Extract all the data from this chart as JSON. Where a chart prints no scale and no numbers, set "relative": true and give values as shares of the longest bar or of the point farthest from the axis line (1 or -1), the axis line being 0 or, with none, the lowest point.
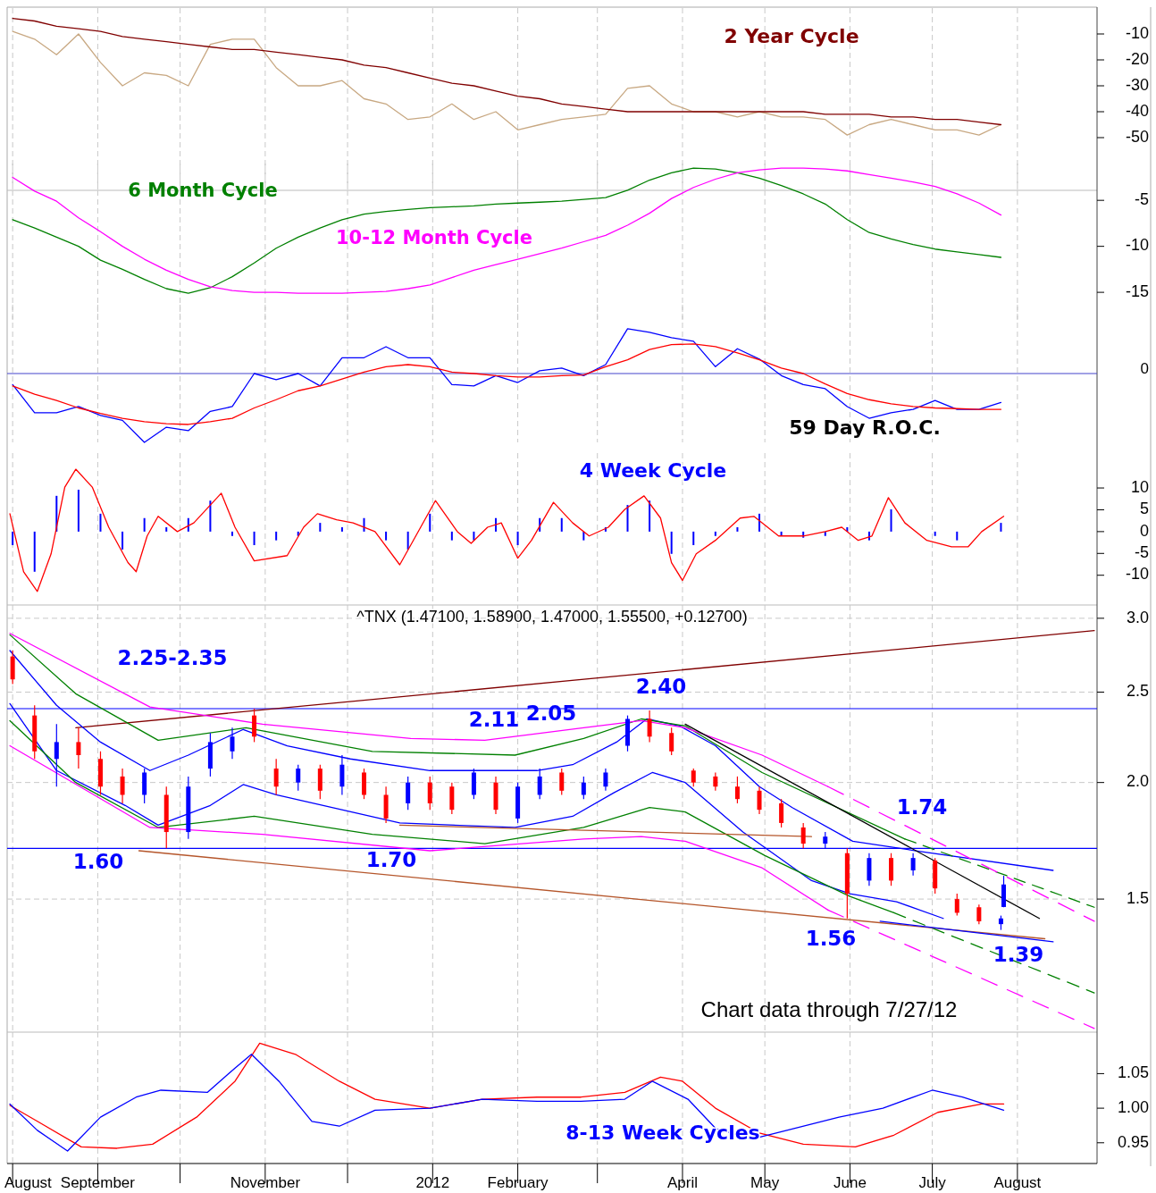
{
  "chart_data": [
    {
      "type": "line",
      "title": "2 Year Cycle",
      "xlim": [
        "2011-07-30",
        "2012-08-30"
      ],
      "ylim": [
        -70,
        0
      ],
      "yticks": [
        -10,
        -20,
        -30,
        -40,
        -50
      ],
      "tick_labels": "y",
      "grid": "x",
      "xticks": [
        {
          "value": "2011-08-01",
          "label": null
        },
        {
          "value": "2011-09-01",
          "label": null
        },
        {
          "value": "2011-10-01",
          "label": null
        },
        {
          "value": "2011-11-01",
          "label": null
        },
        {
          "value": "2011-12-01",
          "label": null
        },
        {
          "value": "2012-01-01",
          "label": null
        },
        {
          "value": "2012-02-01",
          "label": null
        },
        {
          "value": "2012-03-01",
          "label": null
        },
        {
          "value": "2012-04-01",
          "label": null
        },
        {
          "value": "2012-05-01",
          "label": null
        },
        {
          "value": "2012-06-01",
          "label": null
        },
        {
          "value": "2012-07-01",
          "label": null
        },
        {
          "value": "2012-08-01",
          "label": null
        }
      ],
      "x": [
        "2011-08-01",
        "2011-08-09",
        "2011-08-17",
        "2011-08-25",
        "2011-09-02",
        "2011-09-10",
        "2011-09-18",
        "2011-09-26",
        "2011-10-04",
        "2011-10-12",
        "2011-10-20",
        "2011-10-28",
        "2011-11-05",
        "2011-11-13",
        "2011-11-21",
        "2011-11-29",
        "2011-12-07",
        "2011-12-15",
        "2011-12-23",
        "2011-12-31",
        "2012-01-08",
        "2012-01-16",
        "2012-01-24",
        "2012-02-01",
        "2012-02-09",
        "2012-02-17",
        "2012-02-25",
        "2012-03-04",
        "2012-03-12",
        "2012-03-20",
        "2012-03-28",
        "2012-04-05",
        "2012-04-13",
        "2012-04-21",
        "2012-04-29",
        "2012-05-07",
        "2012-05-15",
        "2012-05-23",
        "2012-05-31",
        "2012-06-08",
        "2012-06-16",
        "2012-06-24",
        "2012-07-02",
        "2012-07-10",
        "2012-07-18",
        "2012-07-26"
      ],
      "series": [
        {
          "color": "#c8a882",
          "values": [
            -9,
            -12,
            -18,
            -10,
            -21,
            -30,
            -25,
            -26,
            -30,
            -14,
            -12,
            -12,
            -23,
            -30,
            -30,
            -28,
            -35,
            -37,
            -43,
            -42,
            -37,
            -43,
            -40,
            -47,
            -45,
            -43,
            -42,
            -41,
            -31,
            -30,
            -37,
            -40,
            -40,
            -42,
            -40,
            -42,
            -42,
            -43,
            -49,
            -45,
            -43,
            -45,
            -47,
            -47,
            -49,
            -45
          ]
        },
        {
          "color": "#800000",
          "values": [
            -4,
            -5,
            -7,
            -8,
            -9,
            -11,
            -12,
            -13,
            -14,
            -15,
            -16,
            -16,
            -17,
            -18,
            -19,
            -20,
            -22,
            -23,
            -25,
            -27,
            -29,
            -30,
            -32,
            -34,
            -35,
            -37,
            -38,
            -39,
            -40,
            -40,
            -40,
            -40,
            -40,
            -40,
            -40,
            -40,
            -40,
            -41,
            -41,
            -41,
            -42,
            -42,
            -43,
            -43,
            -44,
            -45
          ]
        }
      ]
    },
    {
      "type": "line",
      "xlim": [
        "2011-07-30",
        "2012-08-30"
      ],
      "ylim": [
        -18,
        -1
      ],
      "yticks": [
        -5,
        -10,
        -15
      ],
      "tick_labels": "y",
      "grid": "x",
      "xticks": [
        {
          "value": "2011-08-01",
          "label": null
        },
        {
          "value": "2011-09-01",
          "label": null
        },
        {
          "value": "2011-10-01",
          "label": null
        },
        {
          "value": "2011-11-01",
          "label": null
        },
        {
          "value": "2011-12-01",
          "label": null
        },
        {
          "value": "2012-01-01",
          "label": null
        },
        {
          "value": "2012-02-01",
          "label": null
        },
        {
          "value": "2012-03-01",
          "label": null
        },
        {
          "value": "2012-04-01",
          "label": null
        },
        {
          "value": "2012-05-01",
          "label": null
        },
        {
          "value": "2012-06-01",
          "label": null
        },
        {
          "value": "2012-07-01",
          "label": null
        },
        {
          "value": "2012-08-01",
          "label": null
        }
      ],
      "x": [
        "2011-08-01",
        "2011-08-09",
        "2011-08-17",
        "2011-08-25",
        "2011-09-02",
        "2011-09-10",
        "2011-09-18",
        "2011-09-26",
        "2011-10-04",
        "2011-10-12",
        "2011-10-20",
        "2011-10-28",
        "2011-11-05",
        "2011-11-13",
        "2011-11-21",
        "2011-11-29",
        "2011-12-07",
        "2011-12-15",
        "2011-12-23",
        "2011-12-31",
        "2012-01-08",
        "2012-01-16",
        "2012-01-24",
        "2012-02-01",
        "2012-02-09",
        "2012-02-17",
        "2012-02-25",
        "2012-03-04",
        "2012-03-12",
        "2012-03-20",
        "2012-03-28",
        "2012-04-05",
        "2012-04-13",
        "2012-04-21",
        "2012-04-29",
        "2012-05-07",
        "2012-05-15",
        "2012-05-23",
        "2012-05-31",
        "2012-06-08",
        "2012-06-16",
        "2012-06-24",
        "2012-07-02",
        "2012-07-10",
        "2012-07-18",
        "2012-07-26"
      ],
      "series": [
        {
          "name": "6 Month Cycle",
          "color": "#008000",
          "values": [
            -7.1,
            -8.0,
            -9.0,
            -10.0,
            -11.5,
            -12.5,
            -13.6,
            -14.6,
            -15.1,
            -14.5,
            -13.3,
            -11.8,
            -10.2,
            -9.0,
            -8.0,
            -7.1,
            -6.5,
            -6.2,
            -6.0,
            -5.8,
            -5.7,
            -5.6,
            -5.4,
            -5.3,
            -5.2,
            -5.1,
            -4.9,
            -4.7,
            -3.9,
            -2.8,
            -2.0,
            -1.5,
            -1.6,
            -2.0,
            -2.6,
            -3.4,
            -4.3,
            -5.4,
            -7.1,
            -8.5,
            -9.2,
            -9.8,
            -10.3,
            -10.6,
            -10.9,
            -11.2
          ]
        },
        {
          "name": "10-12 Month Cycle",
          "color": "#ff00ff",
          "values": [
            -2.5,
            -4.0,
            -5.1,
            -6.9,
            -8.4,
            -10.0,
            -11.4,
            -12.6,
            -13.6,
            -14.4,
            -14.8,
            -15.0,
            -15.0,
            -15.1,
            -15.1,
            -15.1,
            -15.0,
            -14.9,
            -14.6,
            -14.2,
            -13.4,
            -12.6,
            -12.0,
            -11.4,
            -10.8,
            -10.2,
            -9.5,
            -8.8,
            -7.7,
            -6.4,
            -4.8,
            -3.6,
            -2.7,
            -2.0,
            -1.7,
            -1.5,
            -1.5,
            -1.6,
            -1.8,
            -2.2,
            -2.6,
            -3.0,
            -3.5,
            -4.3,
            -5.3,
            -6.6
          ]
        }
      ]
    },
    {
      "type": "line",
      "title": "59 Day R.O.C.",
      "relative": true,
      "xlim": [
        "2011-07-30",
        "2012-08-30"
      ],
      "tick_labels": false,
      "grid": "x",
      "xticks": [
        {
          "value": "2011-08-01",
          "label": null
        },
        {
          "value": "2011-09-01",
          "label": null
        },
        {
          "value": "2011-10-01",
          "label": null
        },
        {
          "value": "2011-11-01",
          "label": null
        },
        {
          "value": "2011-12-01",
          "label": null
        },
        {
          "value": "2012-01-01",
          "label": null
        },
        {
          "value": "2012-02-01",
          "label": null
        },
        {
          "value": "2012-03-01",
          "label": null
        },
        {
          "value": "2012-04-01",
          "label": null
        },
        {
          "value": "2012-05-01",
          "label": null
        },
        {
          "value": "2012-06-01",
          "label": null
        },
        {
          "value": "2012-07-01",
          "label": null
        },
        {
          "value": "2012-08-01",
          "label": null
        }
      ],
      "ref_lines": [
        {
          "axis": "y",
          "value": 0,
          "label": "0",
          "color": "#4444cc"
        }
      ],
      "x": [
        "2011-08-01",
        "2011-08-09",
        "2011-08-17",
        "2011-08-25",
        "2011-09-02",
        "2011-09-10",
        "2011-09-18",
        "2011-09-26",
        "2011-10-04",
        "2011-10-12",
        "2011-10-20",
        "2011-10-28",
        "2011-11-05",
        "2011-11-13",
        "2011-11-21",
        "2011-11-29",
        "2011-12-07",
        "2011-12-15",
        "2011-12-23",
        "2011-12-31",
        "2012-01-08",
        "2012-01-16",
        "2012-01-24",
        "2012-02-01",
        "2012-02-09",
        "2012-02-17",
        "2012-02-25",
        "2012-03-04",
        "2012-03-12",
        "2012-03-20",
        "2012-03-28",
        "2012-04-05",
        "2012-04-13",
        "2012-04-21",
        "2012-04-29",
        "2012-05-07",
        "2012-05-15",
        "2012-05-23",
        "2012-05-31",
        "2012-06-08",
        "2012-06-16",
        "2012-06-24",
        "2012-07-02",
        "2012-07-10",
        "2012-07-18",
        "2012-07-26"
      ],
      "series": [
        {
          "color": "#0000ff",
          "values": [
            -0.16,
            -0.57,
            -0.57,
            -0.48,
            -0.61,
            -0.68,
            -1,
            -0.78,
            -0.83,
            -0.55,
            -0.48,
            0,
            -0.09,
            0,
            -0.18,
            0.23,
            0.23,
            0.39,
            0.23,
            0.23,
            -0.16,
            -0.18,
            -0.03,
            -0.13,
            0.04,
            0.08,
            -0.03,
            0.13,
            0.65,
            0.6,
            0.52,
            0.47,
            0.1,
            0.36,
            0.21,
            -0.03,
            -0.16,
            -0.22,
            -0.48,
            -0.65,
            -0.57,
            -0.52,
            -0.39,
            -0.52,
            -0.52,
            -0.42
          ]
        },
        {
          "color": "#ff0000",
          "values": [
            -0.18,
            -0.3,
            -0.39,
            -0.5,
            -0.58,
            -0.65,
            -0.7,
            -0.73,
            -0.74,
            -0.7,
            -0.65,
            -0.5,
            -0.38,
            -0.25,
            -0.18,
            -0.08,
            0.02,
            0.1,
            0.13,
            0.1,
            0.02,
            0,
            -0.03,
            -0.05,
            -0.05,
            -0.03,
            -0.02,
            0.1,
            0.2,
            0.35,
            0.42,
            0.43,
            0.39,
            0.3,
            0.2,
            0.08,
            0,
            -0.15,
            -0.29,
            -0.38,
            -0.44,
            -0.48,
            -0.5,
            -0.51,
            -0.52,
            -0.52
          ]
        }
      ]
    },
    {
      "type": "line",
      "title": "4 Week Cycle",
      "xlim": [
        "2011-07-30",
        "2012-08-30"
      ],
      "ylim": [
        -16,
        18
      ],
      "yticks": [
        10,
        5,
        0,
        -5,
        -10
      ],
      "tick_labels": "y",
      "grid": "x",
      "xticks": [
        {
          "value": "2011-08-01",
          "label": null
        },
        {
          "value": "2011-09-01",
          "label": null
        },
        {
          "value": "2011-10-01",
          "label": null
        },
        {
          "value": "2011-11-01",
          "label": null
        },
        {
          "value": "2011-12-01",
          "label": null
        },
        {
          "value": "2012-01-01",
          "label": null
        },
        {
          "value": "2012-02-01",
          "label": null
        },
        {
          "value": "2012-03-01",
          "label": null
        },
        {
          "value": "2012-04-01",
          "label": null
        },
        {
          "value": "2012-05-01",
          "label": null
        },
        {
          "value": "2012-06-01",
          "label": null
        },
        {
          "value": "2012-07-01",
          "label": null
        },
        {
          "value": "2012-08-01",
          "label": null
        }
      ],
      "x": [
        "2011-08-01",
        "2011-08-09",
        "2011-08-17",
        "2011-08-25",
        "2011-09-02",
        "2011-09-10",
        "2011-09-18",
        "2011-09-26",
        "2011-10-04",
        "2011-10-12",
        "2011-10-20",
        "2011-10-28",
        "2011-11-05",
        "2011-11-13",
        "2011-11-21",
        "2011-11-29",
        "2011-12-07",
        "2011-12-15",
        "2011-12-23",
        "2011-12-31",
        "2012-01-08",
        "2012-01-16",
        "2012-01-24",
        "2012-02-01",
        "2012-02-09",
        "2012-02-17",
        "2012-02-25",
        "2012-03-04",
        "2012-03-12",
        "2012-03-20",
        "2012-03-28",
        "2012-04-05",
        "2012-04-13",
        "2012-04-21",
        "2012-04-29",
        "2012-05-07",
        "2012-05-15",
        "2012-05-23",
        "2012-05-31",
        "2012-06-08",
        "2012-06-16",
        "2012-06-24",
        "2012-07-02",
        "2012-07-10",
        "2012-07-18",
        "2012-07-26"
      ],
      "series": [
        {
          "type": "bar",
          "color": "#0000ff",
          "values": [
            -3.1,
            -9.2,
            8.2,
            9.6,
            4.1,
            -4.1,
            3.1,
            1.0,
            3.1,
            7.1,
            -1.0,
            -3.1,
            -2.0,
            -1.0,
            2.0,
            1.0,
            3.1,
            -2.0,
            -4.1,
            4.1,
            -2.0,
            -2.0,
            3.1,
            -3.1,
            3.1,
            3.1,
            -2.0,
            1.0,
            6.1,
            7.1,
            -5.1,
            -3.1,
            -1.0,
            1.0,
            4.1,
            -1.0,
            -1.4,
            -1.0,
            1.0,
            -2.0,
            5.1,
            0,
            -1.0,
            -2.0,
            0,
            2.0
          ]
        },
        {
          "type": "line",
          "color": "#ff0000",
          "x": [
            "2011-07-31",
            "2011-08-05",
            "2011-08-10",
            "2011-08-15",
            "2011-08-20",
            "2011-08-24",
            "2011-08-30",
            "2011-09-05",
            "2011-09-12",
            "2011-09-15",
            "2011-09-19",
            "2011-09-23",
            "2011-09-30",
            "2011-10-06",
            "2011-10-16",
            "2011-10-21",
            "2011-10-28",
            "2011-11-09",
            "2011-11-15",
            "2011-11-20",
            "2011-11-27",
            "2011-12-03",
            "2011-12-11",
            "2011-12-20",
            "2011-12-24",
            "2012-01-02",
            "2012-01-10",
            "2012-01-15",
            "2012-01-21",
            "2012-01-26",
            "2012-02-01",
            "2012-02-06",
            "2012-02-14",
            "2012-02-21",
            "2012-02-27",
            "2012-03-05",
            "2012-03-11",
            "2012-03-18",
            "2012-03-24",
            "2012-03-28",
            "2012-04-01",
            "2012-04-06",
            "2012-04-13",
            "2012-04-22",
            "2012-04-27",
            "2012-05-06",
            "2012-05-15",
            "2012-05-23",
            "2012-05-29",
            "2012-06-04",
            "2012-06-09",
            "2012-06-15",
            "2012-06-21",
            "2012-06-29",
            "2012-07-08",
            "2012-07-14",
            "2012-07-19",
            "2012-07-27"
          ],
          "values": [
            4.1,
            -9.2,
            -13.7,
            -5.1,
            10.2,
            14.3,
            10.2,
            1.0,
            -7.1,
            -9.2,
            -1.0,
            3.5,
            0,
            2.0,
            8.8,
            1.0,
            -6.7,
            -5.5,
            1.0,
            4.1,
            2.7,
            2.0,
            0,
            -7.6,
            -3.1,
            7.1,
            0,
            -2.7,
            1.0,
            2.0,
            -6.1,
            -2.0,
            6.7,
            2.0,
            -1.0,
            1.0,
            5.1,
            8.2,
            3.1,
            -7.1,
            -11.2,
            -5.1,
            -2.0,
            3.1,
            3.5,
            -1.0,
            -1.0,
            0,
            1.0,
            -2.0,
            -1.0,
            7.8,
            2.0,
            -2.0,
            -3.5,
            -3.5,
            0,
            3.5
          ]
        }
      ]
    },
    {
      "type": "candlestick",
      "title": "^TNX (1.47100, 1.58900, 1.47000, 1.55500, +0.12700)",
      "log": true,
      "xlim": [
        "2011-07-30",
        "2012-08-30"
      ],
      "ylim": [
        1.08,
        3.1
      ],
      "yticks": [
        {
          "value": 3,
          "label": "3.0"
        },
        2.5,
        {
          "value": 2,
          "label": "2.0"
        },
        1.5
      ],
      "tick_labels": "y",
      "grid": true,
      "xticks": [
        {
          "value": "2011-08-01",
          "label": null
        },
        {
          "value": "2011-09-01",
          "label": null
        },
        {
          "value": "2011-10-01",
          "label": null
        },
        {
          "value": "2011-11-01",
          "label": null
        },
        {
          "value": "2011-12-01",
          "label": null
        },
        {
          "value": "2012-01-01",
          "label": null
        },
        {
          "value": "2012-02-01",
          "label": null
        },
        {
          "value": "2012-03-01",
          "label": null
        },
        {
          "value": "2012-04-01",
          "label": null
        },
        {
          "value": "2012-05-01",
          "label": null
        },
        {
          "value": "2012-06-01",
          "label": null
        },
        {
          "value": "2012-07-01",
          "label": null
        },
        {
          "value": "2012-08-01",
          "label": null
        }
      ],
      "x": [
        "2011-08-01",
        "2011-08-09",
        "2011-08-17",
        "2011-08-25",
        "2011-09-02",
        "2011-09-10",
        "2011-09-18",
        "2011-09-26",
        "2011-10-04",
        "2011-10-12",
        "2011-10-20",
        "2011-10-28",
        "2011-11-05",
        "2011-11-13",
        "2011-11-21",
        "2011-11-29",
        "2011-12-07",
        "2011-12-15",
        "2011-12-23",
        "2011-12-31",
        "2012-01-08",
        "2012-01-16",
        "2012-01-24",
        "2012-02-01",
        "2012-02-09",
        "2012-02-17",
        "2012-02-25",
        "2012-03-04",
        "2012-03-12",
        "2012-03-20",
        "2012-03-28",
        "2012-04-05",
        "2012-04-13",
        "2012-04-21",
        "2012-04-29",
        "2012-05-07",
        "2012-05-15",
        "2012-05-23",
        "2012-05-31",
        "2012-06-08",
        "2012-06-16",
        "2012-06-24",
        "2012-07-02",
        "2012-07-10",
        "2012-07-18",
        "2012-07-26",
        "2012-07-27"
      ],
      "ohlc": [
        [
          2.73,
          2.77,
          2.55,
          2.58
        ],
        [
          2.36,
          2.42,
          2.12,
          2.16
        ],
        [
          2.12,
          2.31,
          1.98,
          2.21
        ],
        [
          2.21,
          2.29,
          2.07,
          2.14
        ],
        [
          2.12,
          2.16,
          1.94,
          1.98
        ],
        [
          2.03,
          2.07,
          1.9,
          1.94
        ],
        [
          1.94,
          2.07,
          1.9,
          2.05
        ],
        [
          1.94,
          1.98,
          1.7,
          1.77
        ],
        [
          1.77,
          2.03,
          1.74,
          1.98
        ],
        [
          2.07,
          2.26,
          2.03,
          2.21
        ],
        [
          2.16,
          2.29,
          2.12,
          2.24
        ],
        [
          2.36,
          2.4,
          2.21,
          2.24
        ],
        [
          2.07,
          2.12,
          1.94,
          1.98
        ],
        [
          2.0,
          2.09,
          1.96,
          2.07
        ],
        [
          2.07,
          2.09,
          1.92,
          1.96
        ],
        [
          1.98,
          2.14,
          1.94,
          2.09
        ],
        [
          2.05,
          2.07,
          1.92,
          1.94
        ],
        [
          1.94,
          1.98,
          1.81,
          1.83
        ],
        [
          1.9,
          2.03,
          1.87,
          2.0
        ],
        [
          2.0,
          2.03,
          1.87,
          1.9
        ],
        [
          1.98,
          2.0,
          1.85,
          1.87
        ],
        [
          1.94,
          2.07,
          1.92,
          2.05
        ],
        [
          2.0,
          2.03,
          1.85,
          1.87
        ],
        [
          1.83,
          2.0,
          1.81,
          1.98
        ],
        [
          1.94,
          2.07,
          1.92,
          2.03
        ],
        [
          2.05,
          2.07,
          1.94,
          1.96
        ],
        [
          1.94,
          2.03,
          1.92,
          2.0
        ],
        [
          1.98,
          2.07,
          1.96,
          2.05
        ],
        [
          2.19,
          2.36,
          2.16,
          2.34
        ],
        [
          2.34,
          2.39,
          2.21,
          2.24
        ],
        [
          2.26,
          2.29,
          2.14,
          2.16
        ],
        [
          2.06,
          2.07,
          1.98,
          2.0
        ],
        [
          2.03,
          2.05,
          1.96,
          1.98
        ],
        [
          1.98,
          2.03,
          1.9,
          1.92
        ],
        [
          1.96,
          1.98,
          1.85,
          1.87
        ],
        [
          1.9,
          1.92,
          1.79,
          1.81
        ],
        [
          1.79,
          1.81,
          1.7,
          1.72
        ],
        [
          1.72,
          1.77,
          1.7,
          1.75
        ],
        [
          1.68,
          1.7,
          1.43,
          1.52
        ],
        [
          1.57,
          1.68,
          1.55,
          1.66
        ],
        [
          1.66,
          1.68,
          1.55,
          1.57
        ],
        [
          1.61,
          1.68,
          1.59,
          1.66
        ],
        [
          1.65,
          1.66,
          1.52,
          1.54
        ],
        [
          1.5,
          1.52,
          1.44,
          1.45
        ],
        [
          1.47,
          1.48,
          1.41,
          1.42
        ],
        [
          1.41,
          1.44,
          1.39,
          1.43
        ],
        [
          1.471,
          1.589,
          1.47,
          1.555
        ]
      ],
      "colors": [
        "#ff0000",
        "#ff0000",
        "#0000ff",
        "#ff0000",
        "#ff0000",
        "#ff0000",
        "#0000ff",
        "#ff0000",
        "#0000ff",
        "#0000ff",
        "#0000ff",
        "#ff0000",
        "#ff0000",
        "#0000ff",
        "#ff0000",
        "#0000ff",
        "#ff0000",
        "#ff0000",
        "#0000ff",
        "#ff0000",
        "#ff0000",
        "#0000ff",
        "#ff0000",
        "#0000ff",
        "#0000ff",
        "#ff0000",
        "#0000ff",
        "#0000ff",
        "#0000ff",
        "#ff0000",
        "#ff0000",
        "#ff0000",
        "#ff0000",
        "#ff0000",
        "#ff0000",
        "#ff0000",
        "#ff0000",
        "#0000ff",
        "#ff0000",
        "#0000ff",
        "#ff0000",
        "#0000ff",
        "#ff0000",
        "#ff0000",
        "#ff0000",
        "#0000ff",
        "#0000ff"
      ],
      "ref_lines": [
        {
          "axis": "y",
          "value": 2.4,
          "color": "#0000ff"
        },
        {
          "axis": "y",
          "value": 1.7,
          "color": "#0000ff"
        }
      ],
      "series": [
        {
          "type": "line",
          "color": "#800000",
          "x": [
            "2011-08-24",
            "2012-08-29"
          ],
          "values": [
            2.29,
            2.91
          ]
        },
        {
          "type": "line",
          "color": "#0000ff",
          "x": [
            "2011-07-31",
            "2011-08-17",
            "2011-09-02",
            "2011-09-20",
            "2011-10-04",
            "2011-10-24",
            "2011-11-09",
            "2011-12-02",
            "2011-12-31",
            "2012-02-08",
            "2012-02-21",
            "2012-03-08",
            "2012-03-19",
            "2012-03-31",
            "2012-04-13",
            "2012-04-29",
            "2012-05-11",
            "2012-06-02",
            "2012-06-25",
            "2012-08-14"
          ],
          "values": [
            2.77,
            2.42,
            2.21,
            2.06,
            2.14,
            2.28,
            2.19,
            2.12,
            2.06,
            2.06,
            2.09,
            2.21,
            2.34,
            2.3,
            2.19,
            1.98,
            1.88,
            1.73,
            1.69,
            1.61
          ]
        },
        {
          "type": "line",
          "color": "#0000ff",
          "x": [
            "2011-07-31",
            "2011-08-17",
            "2011-09-11",
            "2011-09-23",
            "2011-10-12",
            "2011-10-24",
            "2011-11-05",
            "2011-12-20",
            "2012-01-31",
            "2012-02-21",
            "2012-03-07",
            "2012-03-21",
            "2012-04-02",
            "2012-04-23",
            "2012-05-18",
            "2012-06-01",
            "2012-06-18",
            "2012-07-05"
          ],
          "values": [
            2.43,
            2.06,
            1.89,
            1.8,
            1.89,
            1.99,
            1.94,
            1.81,
            1.79,
            1.84,
            1.95,
            2.05,
            2.0,
            1.77,
            1.57,
            1.52,
            1.49,
            1.43
          ]
        },
        {
          "type": "line",
          "color": "#008000",
          "x": [
            "2011-07-31",
            "2011-08-24",
            "2011-09-23",
            "2011-10-25",
            "2011-12-10",
            "2012-01-31",
            "2012-02-25",
            "2012-03-17",
            "2012-04-02",
            "2012-04-30",
            "2012-06-21"
          ],
          "values": [
            2.88,
            2.49,
            2.22,
            2.29,
            2.16,
            2.14,
            2.23,
            2.34,
            2.3,
            2.05,
            1.74
          ]
        },
        {
          "type": "line",
          "color": "#008000",
          "line_style": "dashed",
          "x": [
            "2012-06-21",
            "2012-08-29"
          ],
          "values": [
            1.74,
            1.47
          ]
        },
        {
          "type": "line",
          "color": "#008000",
          "x": [
            "2011-07-31",
            "2011-08-24",
            "2011-09-23",
            "2011-10-28",
            "2011-12-10",
            "2012-01-20",
            "2012-02-25",
            "2012-03-20",
            "2012-04-02",
            "2012-05-01",
            "2012-06-01",
            "2012-06-17"
          ],
          "values": [
            2.33,
            2.0,
            1.79,
            1.84,
            1.76,
            1.72,
            1.79,
            1.88,
            1.86,
            1.67,
            1.51,
            1.45
          ]
        },
        {
          "type": "line",
          "color": "#008000",
          "line_style": "dashed",
          "x": [
            "2012-06-17",
            "2012-08-29"
          ],
          "values": [
            1.45,
            1.19
          ]
        },
        {
          "type": "line",
          "color": "#ff00ff",
          "x": [
            "2011-07-31",
            "2011-09-20",
            "2011-10-31",
            "2011-12-24",
            "2012-01-20",
            "2012-02-25",
            "2012-03-17",
            "2012-04-02",
            "2012-04-30",
            "2012-05-24"
          ],
          "values": [
            2.89,
            2.41,
            2.31,
            2.23,
            2.22,
            2.29,
            2.33,
            2.29,
            2.14,
            1.98
          ]
        },
        {
          "type": "line",
          "color": "#ff00ff",
          "line_style": "dashed",
          "x": [
            "2012-05-24",
            "2012-08-29"
          ],
          "values": [
            1.98,
            1.42
          ]
        },
        {
          "type": "line",
          "color": "#ff00ff",
          "x": [
            "2011-07-31",
            "2011-09-20",
            "2011-10-31",
            "2011-12-31",
            "2012-02-25",
            "2012-03-17",
            "2012-04-02",
            "2012-04-30",
            "2012-05-24"
          ],
          "values": [
            2.19,
            1.79,
            1.76,
            1.69,
            1.74,
            1.75,
            1.73,
            1.62,
            1.46
          ]
        },
        {
          "type": "line",
          "color": "#ff00ff",
          "line_style": "dashed",
          "x": [
            "2012-05-24",
            "2012-08-29"
          ],
          "values": [
            1.46,
            1.09
          ]
        },
        {
          "type": "line",
          "color": "#b5562b",
          "x": [
            "2011-09-16",
            "2012-08-11"
          ],
          "values": [
            1.69,
            1.36
          ]
        },
        {
          "type": "line",
          "color": "#b5562b",
          "x": [
            "2011-12-20",
            "2012-05-18"
          ],
          "values": [
            1.8,
            1.75
          ]
        },
        {
          "type": "line",
          "color": "#000000",
          "x": [
            "2012-04-02",
            "2012-08-09"
          ],
          "values": [
            2.31,
            1.43
          ]
        },
        {
          "type": "line",
          "color": "#0000ff",
          "x": [
            "2012-06-12",
            "2012-08-14"
          ],
          "values": [
            1.42,
            1.35
          ]
        }
      ],
      "annotations": [
        "2.25-2.35",
        "2.11",
        "2.05",
        "2.40",
        "1.74",
        "1.60",
        "1.70",
        "1.56",
        "1.39",
        "Chart data through 7/27/12"
      ]
    },
    {
      "type": "line",
      "title": "8-13 Week Cycles",
      "xlim": [
        "2011-07-30",
        "2012-08-30"
      ],
      "ylim": [
        0.92,
        1.11
      ],
      "yticks": [
        1.05,
        {
          "value": 1,
          "label": "1.00"
        },
        0.95
      ],
      "grid": "x",
      "xticks": [
        {
          "value": "2011-08-01",
          "label": "August"
        },
        {
          "value": "2011-09-01",
          "label": "September"
        },
        {
          "value": "2011-10-01",
          "label": null
        },
        {
          "value": "2011-11-01",
          "label": "November"
        },
        {
          "value": "2011-12-01",
          "label": null
        },
        {
          "value": "2012-01-01",
          "label": "2012"
        },
        {
          "value": "2012-02-01",
          "label": "February"
        },
        {
          "value": "2012-03-01",
          "label": null
        },
        {
          "value": "2012-04-01",
          "label": "April"
        },
        {
          "value": "2012-05-01",
          "label": "May"
        },
        {
          "value": "2012-06-01",
          "label": "June"
        },
        {
          "value": "2012-07-01",
          "label": "July"
        },
        {
          "value": "2012-08-01",
          "label": "August"
        }
      ],
      "series": [
        {
          "color": "#ff0000",
          "x": [
            "2011-07-31",
            "2011-08-10",
            "2011-08-26",
            "2011-09-08",
            "2011-09-21",
            "2011-10-07",
            "2011-10-21",
            "2011-10-30",
            "2011-11-12",
            "2011-11-28",
            "2011-12-11",
            "2011-12-31",
            "2012-01-19",
            "2012-02-08",
            "2012-02-24",
            "2012-03-11",
            "2012-03-24",
            "2012-04-01",
            "2012-04-13",
            "2012-04-29",
            "2012-05-15",
            "2012-06-03",
            "2012-06-17",
            "2012-07-03",
            "2012-07-19",
            "2012-07-27"
          ],
          "values": [
            1.004,
            0.981,
            0.944,
            0.942,
            0.948,
            0.987,
            1.039,
            1.094,
            1.078,
            1.039,
            1.013,
            1.0,
            1.013,
            1.016,
            1.016,
            1.023,
            1.045,
            1.039,
            1.0,
            0.964,
            0.948,
            0.944,
            0.961,
            0.994,
            1.006,
            1.006
          ]
        },
        {
          "color": "#0000ff",
          "x": [
            "2011-07-31",
            "2011-08-10",
            "2011-08-21",
            "2011-09-02",
            "2011-09-15",
            "2011-09-24",
            "2011-10-11",
            "2011-10-21",
            "2011-10-27",
            "2011-11-06",
            "2011-11-18",
            "2011-11-28",
            "2011-12-11",
            "2011-12-31",
            "2012-01-19",
            "2012-02-08",
            "2012-02-24",
            "2012-03-11",
            "2012-03-21",
            "2012-04-03",
            "2012-04-13",
            "2012-04-26",
            "2012-05-09",
            "2012-05-28",
            "2012-06-13",
            "2012-07-01",
            "2012-07-12",
            "2012-07-27"
          ],
          "values": [
            1.006,
            0.968,
            0.938,
            0.987,
            1.016,
            1.026,
            1.023,
            1.058,
            1.078,
            1.039,
            0.981,
            0.974,
            0.997,
            1.0,
            1.013,
            1.01,
            1.01,
            1.013,
            1.039,
            1.013,
            0.971,
            0.955,
            0.968,
            0.987,
            1.0,
            1.026,
            1.016,
            0.997
          ]
        }
      ]
    }
  ]
}
